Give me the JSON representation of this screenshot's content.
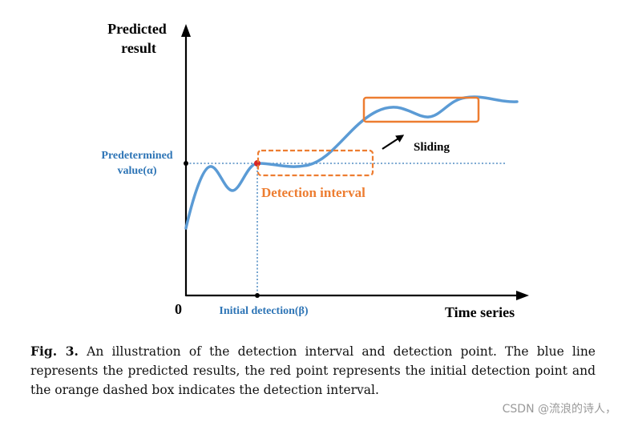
{
  "diagram": {
    "y_axis_label_line1": "Predicted",
    "y_axis_label_line2": "result",
    "x_axis_label": "Time series",
    "origin_label": "0",
    "threshold_label_line1": "Predetermined",
    "threshold_label_line2": "value(α)",
    "initial_detection_label": "Initial detection(β)",
    "detection_interval_label": "Detection interval",
    "sliding_label": "Sliding",
    "colors": {
      "curve": "#5b9bd5",
      "label_blue": "#2e75b6",
      "accent_orange": "#ed7d31",
      "point_red": "#d62728",
      "axis": "#000000"
    }
  },
  "caption": {
    "fig_label": "Fig. 3.",
    "text": "An illustration of the detection interval and detection point. The blue line represents the predicted results, the red point represents the initial detection point and the orange dashed box indicates the detection interval."
  },
  "watermark": "CSDN @流浪的诗人，"
}
